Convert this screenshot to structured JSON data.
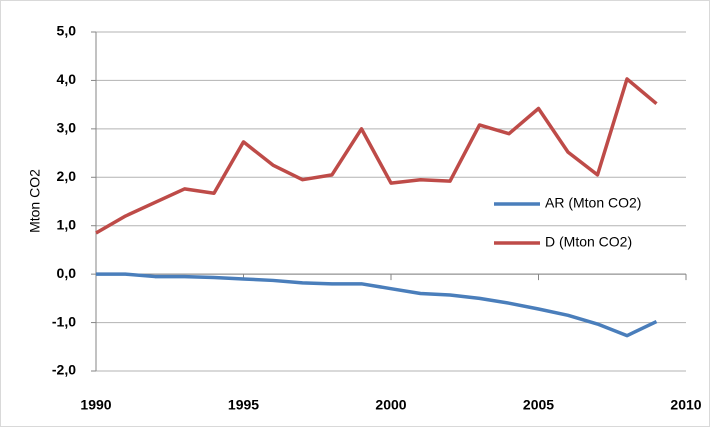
{
  "chart_data": {
    "type": "line",
    "y_label": "Mton CO2",
    "x": [
      1990,
      1991,
      1992,
      1993,
      1994,
      1995,
      1996,
      1997,
      1998,
      1999,
      2000,
      2001,
      2002,
      2003,
      2004,
      2005,
      2006,
      2007,
      2008,
      2009
    ],
    "series": [
      {
        "name": "AR (Mton CO2)",
        "color": "#4a7ebb",
        "values": [
          0,
          0,
          -0.05,
          -0.05,
          -0.07,
          -0.1,
          -0.13,
          -0.18,
          -0.2,
          -0.2,
          -0.3,
          -0.4,
          -0.43,
          -0.5,
          -0.6,
          -0.72,
          -0.85,
          -1.03,
          -1.27,
          -0.98
        ]
      },
      {
        "name": "D (Mton CO2)",
        "color": "#be4b48",
        "values": [
          0.85,
          1.2,
          1.48,
          1.76,
          1.67,
          2.73,
          2.25,
          1.95,
          2.05,
          3.0,
          1.88,
          1.95,
          1.92,
          3.08,
          2.9,
          3.42,
          2.52,
          2.05,
          4.03,
          3.52
        ]
      }
    ],
    "xlim": [
      1990,
      2010
    ],
    "xticks": [
      1990,
      1995,
      2000,
      2005,
      2010
    ],
    "ylim": [
      -2,
      5
    ],
    "yticks": [
      {
        "value": -2,
        "label": "-2,0"
      },
      {
        "value": -1,
        "label": "-1,0"
      },
      {
        "value": 0,
        "label": "0,0"
      },
      {
        "value": 1,
        "label": "1,0"
      },
      {
        "value": 2,
        "label": "2,0"
      },
      {
        "value": 3,
        "label": "3,0"
      },
      {
        "value": 4,
        "label": "4,0"
      },
      {
        "value": 5,
        "label": "5,0"
      }
    ],
    "grid": true,
    "legend": "right"
  }
}
